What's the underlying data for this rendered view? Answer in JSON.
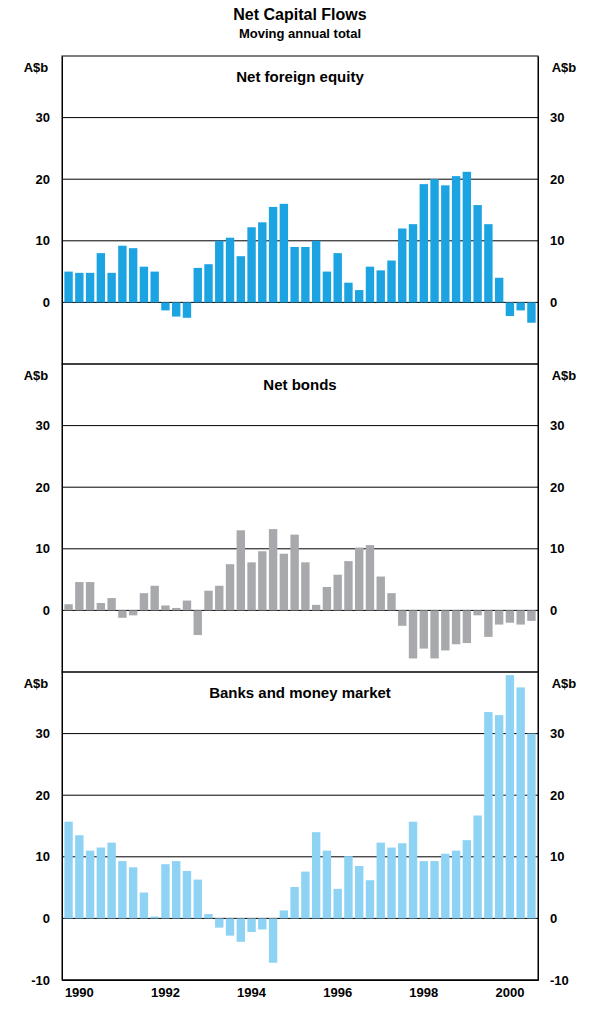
{
  "title": "Net Capital Flows",
  "subtitle": "Moving annual total",
  "chart_data": [
    {
      "type": "bar",
      "title": "Net foreign equity",
      "ylabel": "A$b",
      "color": "#1ba3e2",
      "categories": [
        null,
        "1990",
        null,
        null,
        null,
        null,
        null,
        null,
        null,
        "1992",
        null,
        null,
        null,
        null,
        null,
        null,
        null,
        "1994",
        null,
        null,
        null,
        null,
        null,
        null,
        null,
        "1996",
        null,
        null,
        null,
        null,
        null,
        null,
        null,
        "1998",
        null,
        null,
        null,
        null,
        null,
        null,
        null,
        "2000",
        null,
        null
      ],
      "values": [
        5,
        4.8,
        4.8,
        8,
        4.8,
        9.2,
        8.8,
        5.8,
        5,
        -1.3,
        -2.3,
        -2.5,
        5.6,
        6.2,
        10,
        10.5,
        7.5,
        12.2,
        13,
        15.5,
        16,
        9,
        9,
        10,
        5,
        8,
        3.2,
        2,
        5.8,
        5.2,
        6.8,
        12,
        12.7,
        19.2,
        20,
        19,
        20.5,
        21.2,
        15.8,
        12.7,
        4,
        -2.2,
        -1.3,
        -3.3
      ],
      "ylim": [
        -10,
        40
      ],
      "yticks": [
        0,
        10,
        20,
        30
      ],
      "grid": true,
      "tick_labels": "y"
    },
    {
      "type": "bar",
      "title": "Net bonds",
      "ylabel": "A$b",
      "color": "#a7a9ac",
      "categories": [
        null,
        "1990",
        null,
        null,
        null,
        null,
        null,
        null,
        null,
        "1992",
        null,
        null,
        null,
        null,
        null,
        null,
        null,
        "1994",
        null,
        null,
        null,
        null,
        null,
        null,
        null,
        "1996",
        null,
        null,
        null,
        null,
        null,
        null,
        null,
        "1998",
        null,
        null,
        null,
        null,
        null,
        null,
        null,
        "2000",
        null,
        null
      ],
      "values": [
        1,
        4.6,
        4.6,
        1.2,
        2,
        -1.2,
        -0.8,
        2.8,
        4,
        0.8,
        0.4,
        1.6,
        -4,
        3.2,
        4,
        7.5,
        13,
        7.8,
        9.6,
        13.2,
        9.2,
        12.3,
        7.8,
        0.9,
        3.8,
        5.8,
        8,
        10.2,
        10.6,
        5.5,
        2.8,
        -2.5,
        -7.8,
        -6.2,
        -7.8,
        -6.5,
        -5.5,
        -5.3,
        -0.8,
        -4.3,
        -2.3,
        -2,
        -2.3,
        -1.7
      ],
      "ylim": [
        -10,
        40
      ],
      "yticks": [
        0,
        10,
        20,
        30
      ],
      "grid": true,
      "tick_labels": "y"
    },
    {
      "type": "bar",
      "title": "Banks and money market",
      "ylabel": "A$b",
      "color": "#8fd3f4",
      "categories": [
        null,
        "1990",
        null,
        null,
        null,
        null,
        null,
        null,
        null,
        "1992",
        null,
        null,
        null,
        null,
        null,
        null,
        null,
        "1994",
        null,
        null,
        null,
        null,
        null,
        null,
        null,
        "1996",
        null,
        null,
        null,
        null,
        null,
        null,
        null,
        "1998",
        null,
        null,
        null,
        null,
        null,
        null,
        null,
        "2000",
        null,
        null
      ],
      "values": [
        15.7,
        13.5,
        11,
        11.5,
        12.3,
        9.3,
        8.3,
        4.2,
        0.3,
        8.8,
        9.3,
        7.7,
        6.3,
        0.7,
        -1.5,
        -2.8,
        -3.8,
        -2.2,
        -1.8,
        -7.2,
        1.3,
        5.1,
        7.6,
        14,
        11,
        4.8,
        10.1,
        8.5,
        6.2,
        12.3,
        11.5,
        12.2,
        15.7,
        9.3,
        9.3,
        10.5,
        11,
        12.7,
        16.7,
        33.5,
        33,
        39.5,
        37.5,
        30
      ],
      "ylim": [
        -10,
        40
      ],
      "yticks": [
        -10,
        0,
        10,
        20,
        30
      ],
      "grid": true
    }
  ]
}
